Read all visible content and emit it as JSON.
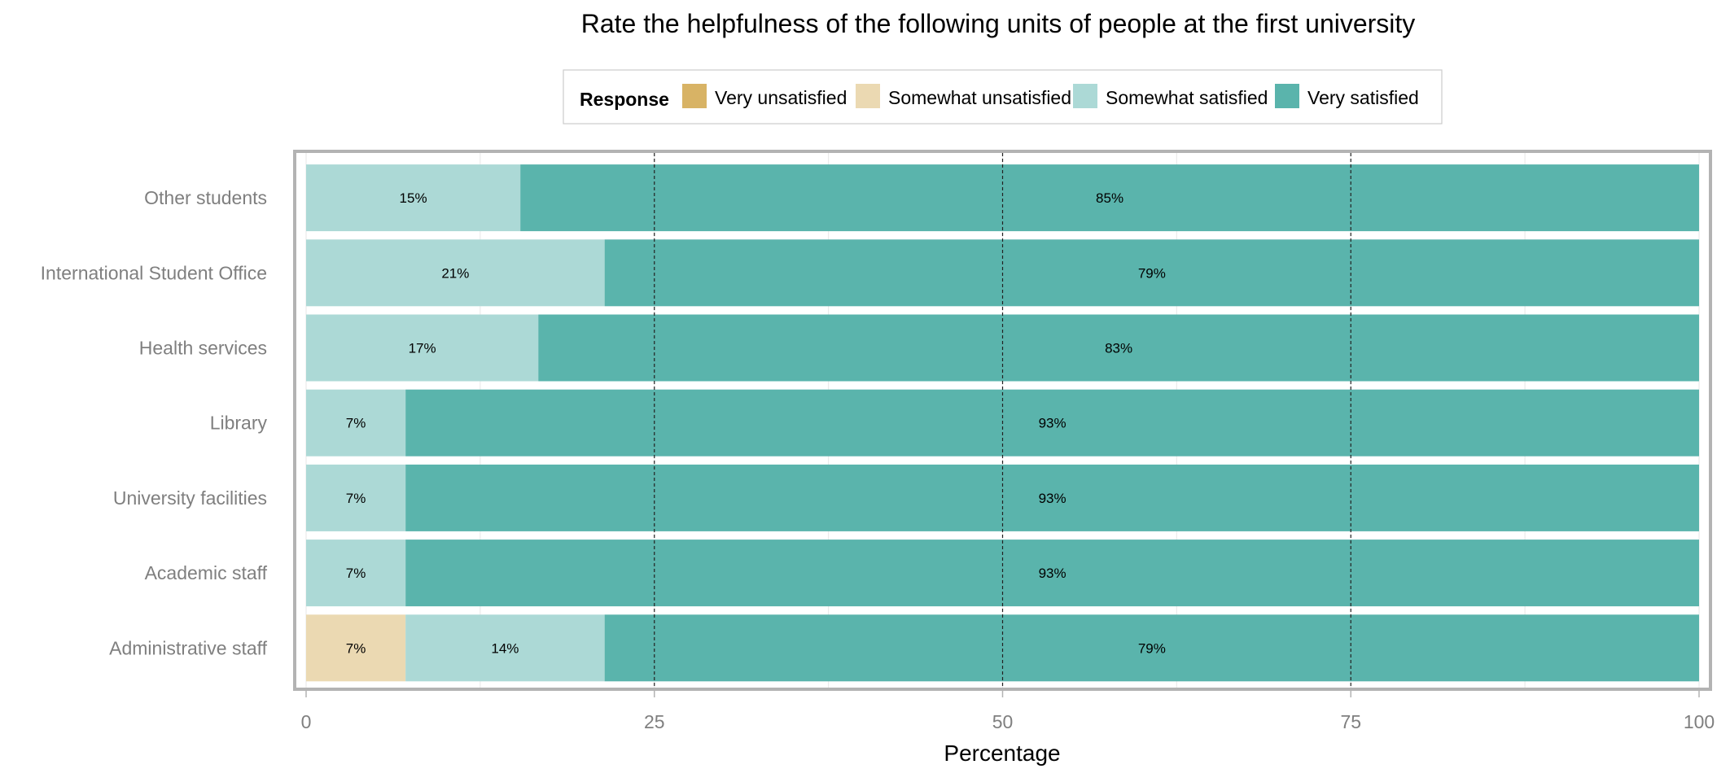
{
  "chart_data": {
    "type": "bar",
    "orientation": "horizontal",
    "stacked": true,
    "title": "Rate the helpfulness of the following units of people at the first university",
    "xlabel": "Percentage",
    "ylabel": "",
    "xlim": [
      0,
      100
    ],
    "x_ticks": [
      0,
      25,
      50,
      75,
      100
    ],
    "x_tick_labels": [
      "0",
      "25",
      "50",
      "75",
      "100"
    ],
    "reference_lines": [
      25,
      50,
      75
    ],
    "grid": true,
    "legend": {
      "title": "Response",
      "position": "top"
    },
    "categories": [
      "Other students",
      "International Student Office",
      "Health services",
      "Library",
      "University facilities",
      "Academic staff",
      "Administrative staff"
    ],
    "series": [
      {
        "name": "Very unsatisfied",
        "color": "#d8b365",
        "values": [
          0,
          0,
          0,
          0,
          0,
          0,
          0
        ],
        "labels": [
          "",
          "",
          "",
          "",
          "",
          "",
          ""
        ]
      },
      {
        "name": "Somewhat unsatisfied",
        "color": "#ebd9b2",
        "values": [
          0,
          0,
          0,
          0,
          0,
          0,
          7.14
        ],
        "labels": [
          "",
          "",
          "",
          "",
          "",
          "",
          "7%"
        ]
      },
      {
        "name": "Somewhat satisfied",
        "color": "#acd9d6",
        "values": [
          15.38,
          21.43,
          16.67,
          7.14,
          7.14,
          7.14,
          14.29
        ],
        "labels": [
          "15%",
          "21%",
          "17%",
          "7%",
          "7%",
          "7%",
          "14%"
        ]
      },
      {
        "name": "Very satisfied",
        "color": "#5ab4ac",
        "values": [
          84.62,
          78.57,
          83.33,
          92.86,
          92.86,
          92.86,
          78.57
        ],
        "labels": [
          "85%",
          "79%",
          "83%",
          "93%",
          "93%",
          "93%",
          "79%"
        ]
      }
    ]
  }
}
